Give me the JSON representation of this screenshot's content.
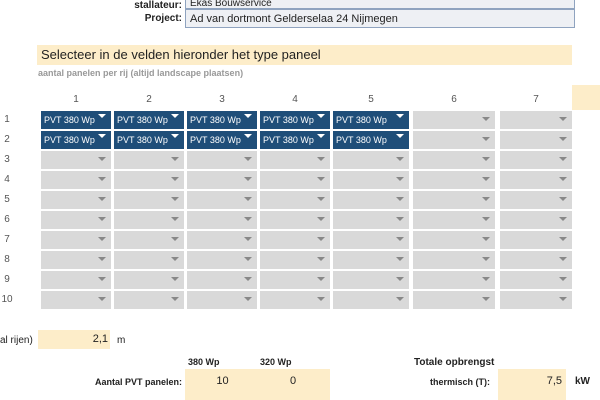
{
  "header": {
    "installer_label": "stallateur:",
    "installer_value": "Ekas Bouwservice",
    "project_label": "Project:",
    "project_value": "Ad van dortmont Gelderselaa 24 Nijmegen"
  },
  "section": {
    "title": "Selecteer in de velden hieronder het type paneel",
    "subtitle": "aantal panelen per rij (altijd landscape plaatsen)"
  },
  "grid": {
    "columns": [
      "1",
      "2",
      "3",
      "4",
      "5",
      "6",
      "7"
    ],
    "rows": [
      "1",
      "2",
      "3",
      "4",
      "5",
      "6",
      "7",
      "8",
      "9",
      "10"
    ],
    "values": [
      [
        "PVT 380 Wp",
        "PVT 380 Wp",
        "PVT 380 Wp",
        "PVT 380 Wp",
        "PVT 380 Wp",
        "",
        ""
      ],
      [
        "PVT 380 Wp",
        "PVT 380 Wp",
        "PVT 380 Wp",
        "PVT 380 Wp",
        "PVT 380 Wp",
        "",
        ""
      ],
      [
        "",
        "",
        "",
        "",
        "",
        "",
        ""
      ],
      [
        "",
        "",
        "",
        "",
        "",
        "",
        ""
      ],
      [
        "",
        "",
        "",
        "",
        "",
        "",
        ""
      ],
      [
        "",
        "",
        "",
        "",
        "",
        "",
        ""
      ],
      [
        "",
        "",
        "",
        "",
        "",
        "",
        ""
      ],
      [
        "",
        "",
        "",
        "",
        "",
        "",
        ""
      ],
      [
        "",
        "",
        "",
        "",
        "",
        "",
        ""
      ],
      [
        "",
        "",
        "",
        "",
        "",
        "",
        ""
      ]
    ]
  },
  "distance": {
    "label": "al rijen)",
    "value": "2,1",
    "unit": "m"
  },
  "summary": {
    "col1": "380 Wp",
    "col2": "320 Wp",
    "panels_label": "Aantal PVT panelen:",
    "panels_380": "10",
    "panels_320": "0",
    "total_title": "Totale opbrengst",
    "thermal_label": "thermisch (T):",
    "thermal_value": "7,5",
    "thermal_unit": "kW"
  },
  "colors": {
    "selected": "#1f4e79",
    "empty": "#d9d9d9",
    "highlight": "#fdedc9"
  }
}
